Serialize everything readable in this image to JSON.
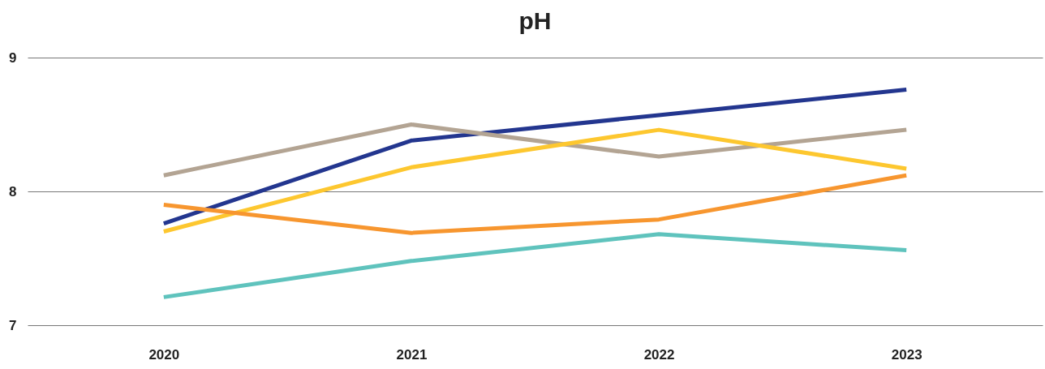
{
  "chart_data": {
    "type": "line",
    "title": "pH",
    "categories": [
      "2020",
      "2021",
      "2022",
      "2023"
    ],
    "series": [
      {
        "color": "#23368f",
        "values": [
          7.76,
          8.38,
          8.57,
          8.76
        ]
      },
      {
        "color": "#b3a493",
        "values": [
          8.12,
          8.5,
          8.26,
          8.46
        ]
      },
      {
        "color": "#fdc72f",
        "values": [
          7.7,
          8.18,
          8.46,
          8.17
        ]
      },
      {
        "color": "#f7962f",
        "values": [
          7.9,
          7.69,
          7.79,
          8.12
        ]
      },
      {
        "color": "#5fc3bd",
        "values": [
          7.21,
          7.48,
          7.68,
          7.56
        ]
      }
    ],
    "ylim": [
      7,
      9
    ],
    "yticks": [
      7,
      8,
      9
    ],
    "grid": "y",
    "legend": false
  }
}
